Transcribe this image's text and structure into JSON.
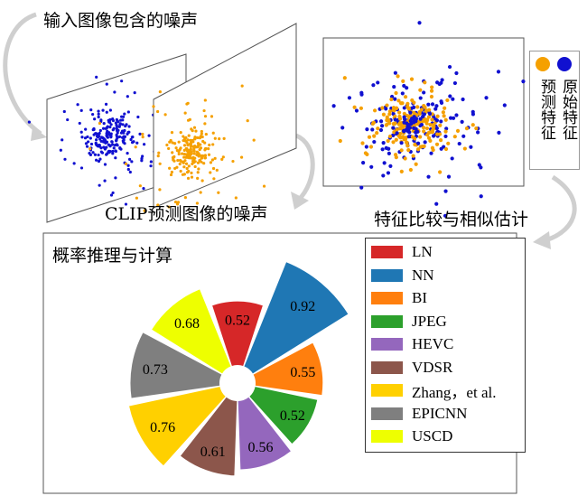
{
  "captions": {
    "input_noise": "输入图像包含的噪声",
    "clip_noise": "CLIP预测图像的噪声",
    "compare": "特征比较与相似估计",
    "inference": "概率推理与计算"
  },
  "feature_legend": {
    "original": "原始特征",
    "predicted": "预测特征",
    "colors": {
      "original": "#1010d0",
      "predicted": "#f5a000"
    }
  },
  "chart_data": {
    "type": "pie",
    "categories": [
      "LN",
      "NN",
      "BI",
      "JPEG",
      "HEVC",
      "VDSR",
      "Zhang，et al.",
      "EPICNN",
      "USCD"
    ],
    "values": [
      0.52,
      0.92,
      0.55,
      0.52,
      0.56,
      0.61,
      0.76,
      0.73,
      0.68
    ],
    "colors": [
      "#d62728",
      "#1f77b4",
      "#ff7f0e",
      "#2ca02c",
      "#9467bd",
      "#8c564b",
      "#ffd000",
      "#7f7f7f",
      "#eeff00"
    ],
    "legend": "top-right"
  }
}
